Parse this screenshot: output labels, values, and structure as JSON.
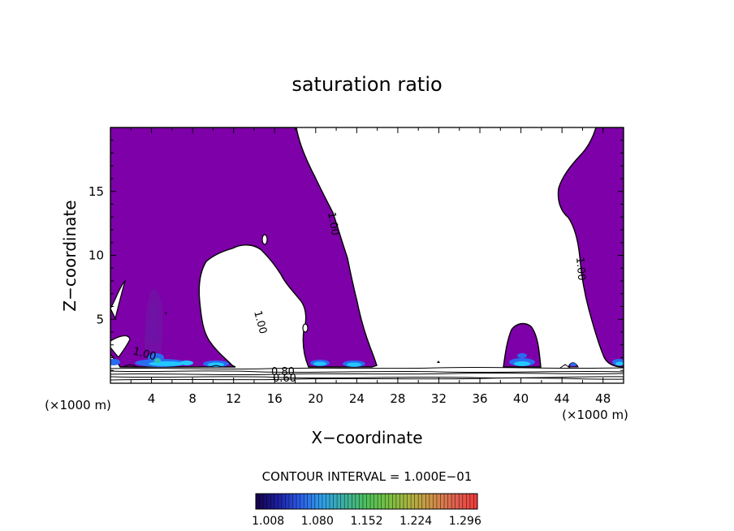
{
  "chart_data": {
    "type": "contour",
    "title": "saturation ratio",
    "xlabel": "X−coordinate",
    "ylabel": "Z−coordinate",
    "x_unit_label": "(×1000 m)",
    "z_unit_label": "(×1000 m)",
    "xlim": [
      0,
      50
    ],
    "ylim": [
      0,
      20
    ],
    "x_ticks": [
      "4",
      "8",
      "12",
      "16",
      "20",
      "24",
      "28",
      "32",
      "36",
      "40",
      "44",
      "48"
    ],
    "y_ticks": [
      "5",
      "10",
      "15"
    ],
    "contour_labels": [
      "1.00",
      "1.00",
      "1.00",
      "1.00",
      "0.80",
      "0.60"
    ],
    "contour_interval_text": "CONTOUR INTERVAL = 1.000E−01",
    "colorbar": {
      "tick_labels": [
        "1.008",
        "1.080",
        "1.152",
        "1.224",
        "1.296"
      ],
      "min": 0.99,
      "max": 1.314,
      "colors": [
        "#14004a",
        "#1b1fa0",
        "#2b5ce8",
        "#2fa0e8",
        "#3cb0a0",
        "#4ec05a",
        "#78c042",
        "#b0b040",
        "#d09048",
        "#e06050",
        "#f03a3a"
      ]
    },
    "regions": [
      {
        "name": "supersaturated-region-left",
        "level": 1.0
      },
      {
        "name": "supersaturated-region-right",
        "level": 1.0
      }
    ],
    "colors": {
      "fill": "#7d00a8",
      "cyan": "#22c8ff",
      "blue": "#2a6cf0",
      "teal": "#2cc3b0"
    }
  }
}
